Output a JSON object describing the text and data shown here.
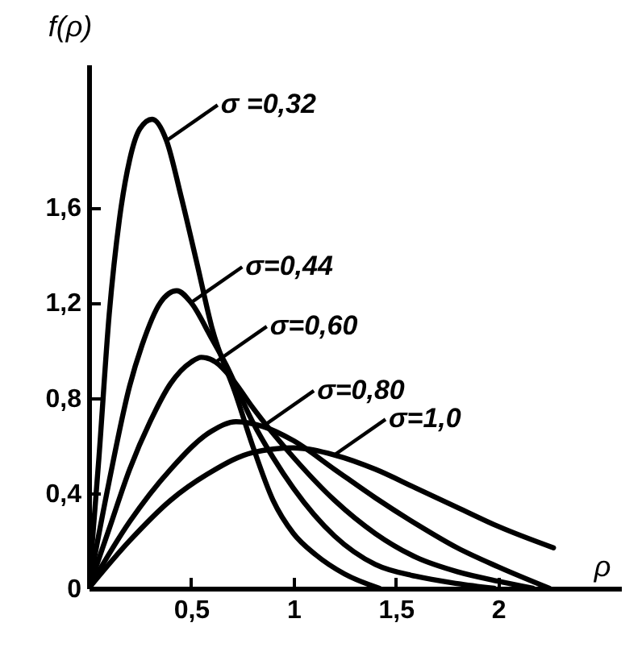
{
  "chart_data": {
    "type": "line",
    "xlabel": "ρ",
    "ylabel": "f(ρ)",
    "xlim": [
      0,
      2.6
    ],
    "ylim": [
      0,
      2.2
    ],
    "legend": "top left",
    "xticks": [
      {
        "value": 0.5,
        "label": "0,5"
      },
      1,
      {
        "value": 1.5,
        "label": "1,5"
      },
      2
    ],
    "yticks": [
      0,
      {
        "value": 0.4,
        "label": "0,4"
      },
      {
        "value": 0.8,
        "label": "0,8"
      },
      {
        "value": 1.2,
        "label": "1,2"
      },
      {
        "value": 1.6,
        "label": "1,6"
      }
    ],
    "series": [
      {
        "name": "σ =0,32",
        "color": "#000000",
        "x": [
          0,
          0.05,
          0.1,
          0.15,
          0.2,
          0.25,
          0.31,
          0.38,
          0.45,
          0.53,
          0.6,
          0.72,
          0.8,
          0.9,
          1.0,
          1.11,
          1.25,
          1.42
        ],
        "values": [
          0,
          0.55,
          1.15,
          1.55,
          1.8,
          1.93,
          1.97,
          1.88,
          1.65,
          1.36,
          1.1,
          0.81,
          0.6,
          0.37,
          0.23,
          0.14,
          0.06,
          0
        ]
      },
      {
        "name": "σ=0,44",
        "color": "#000000",
        "x": [
          0,
          0.1,
          0.2,
          0.26,
          0.35,
          0.43,
          0.5,
          0.6,
          0.67,
          0.8,
          0.9,
          1.0,
          1.2,
          1.4,
          1.6,
          1.8,
          1.98
        ],
        "values": [
          0,
          0.45,
          0.85,
          1.02,
          1.2,
          1.25,
          1.2,
          1.05,
          0.94,
          0.7,
          0.55,
          0.42,
          0.22,
          0.1,
          0.05,
          0.02,
          0
        ]
      },
      {
        "name": "σ=0,60",
        "color": "#000000",
        "x": [
          0,
          0.1,
          0.2,
          0.3,
          0.4,
          0.5,
          0.55,
          0.62,
          0.7,
          0.8,
          1.0,
          1.2,
          1.4,
          1.6,
          1.8,
          2.0,
          2.17
        ],
        "values": [
          0,
          0.25,
          0.5,
          0.7,
          0.86,
          0.95,
          0.97,
          0.95,
          0.88,
          0.76,
          0.55,
          0.37,
          0.23,
          0.13,
          0.07,
          0.03,
          0
        ]
      },
      {
        "name": "σ=0,80",
        "color": "#000000",
        "x": [
          0,
          0.2,
          0.4,
          0.6,
          0.72,
          0.85,
          1.0,
          1.2,
          1.4,
          1.6,
          1.8,
          2.0,
          2.25
        ],
        "values": [
          0,
          0.28,
          0.5,
          0.66,
          0.7,
          0.68,
          0.62,
          0.5,
          0.38,
          0.27,
          0.17,
          0.09,
          0
        ]
      },
      {
        "name": "σ=1,0",
        "color": "#000000",
        "x": [
          0,
          0.2,
          0.4,
          0.6,
          0.8,
          1.0,
          1.2,
          1.4,
          1.6,
          1.8,
          2.0,
          2.27
        ],
        "values": [
          0,
          0.2,
          0.37,
          0.49,
          0.57,
          0.59,
          0.56,
          0.5,
          0.42,
          0.34,
          0.26,
          0.17
        ]
      }
    ]
  }
}
